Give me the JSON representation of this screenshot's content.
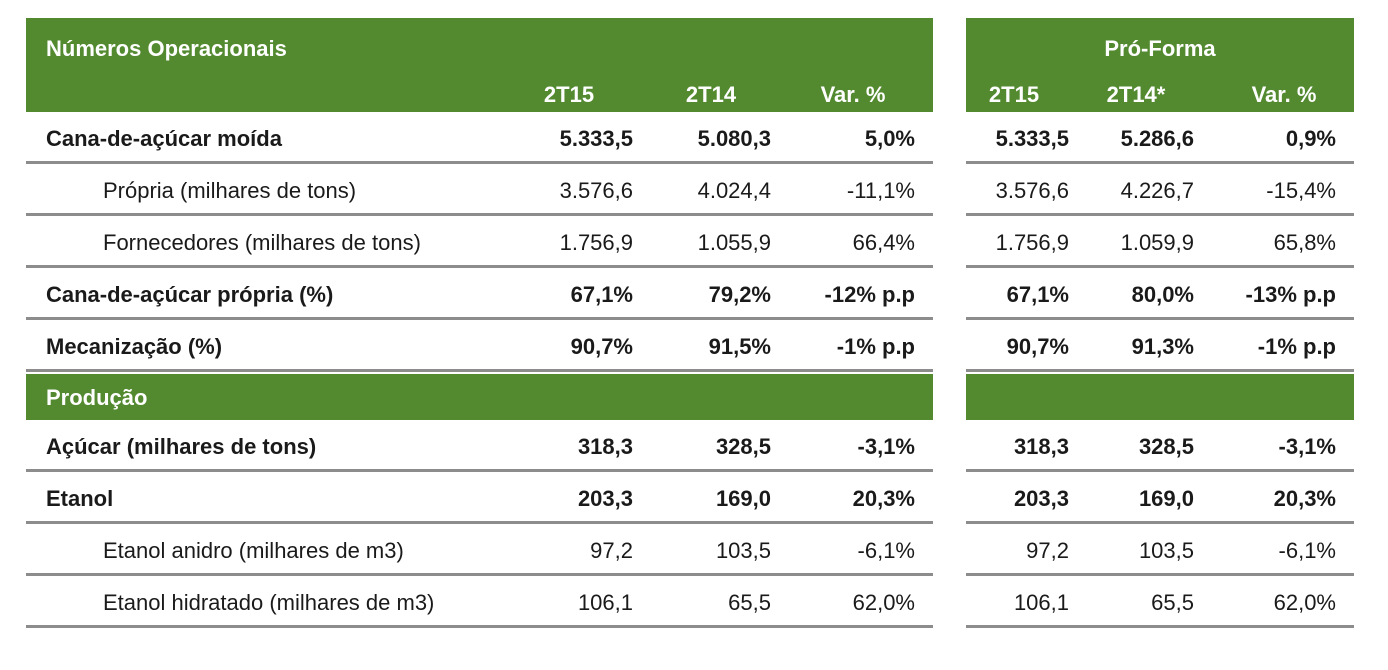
{
  "left": {
    "title": "Números Operacionais",
    "cols": [
      "2T15",
      "2T14",
      "Var. %"
    ],
    "section_label": "Produção"
  },
  "right": {
    "title": "Pró-Forma",
    "cols": [
      "2T15",
      "2T14*",
      "Var. %"
    ]
  },
  "rows_top": [
    {
      "label": "Cana-de-açúcar moída",
      "bold": true,
      "indent": false,
      "l": [
        "5.333,5",
        "5.080,3",
        "5,0%"
      ],
      "r": [
        "5.333,5",
        "5.286,6",
        "0,9%"
      ]
    },
    {
      "label": "Própria (milhares de tons)",
      "bold": false,
      "indent": true,
      "l": [
        "3.576,6",
        "4.024,4",
        "-11,1%"
      ],
      "r": [
        "3.576,6",
        "4.226,7",
        "-15,4%"
      ]
    },
    {
      "label": "Fornecedores (milhares de tons)",
      "bold": false,
      "indent": true,
      "l": [
        "1.756,9",
        "1.055,9",
        "66,4%"
      ],
      "r": [
        "1.756,9",
        "1.059,9",
        "65,8%"
      ]
    },
    {
      "label": "Cana-de-açúcar própria (%)",
      "bold": true,
      "indent": false,
      "l": [
        "67,1%",
        "79,2%",
        "-12% p.p"
      ],
      "r": [
        "67,1%",
        "80,0%",
        "-13% p.p"
      ]
    },
    {
      "label": "Mecanização (%)",
      "bold": true,
      "indent": false,
      "l": [
        "90,7%",
        "91,5%",
        "-1% p.p"
      ],
      "r": [
        "90,7%",
        "91,3%",
        "-1% p.p"
      ]
    }
  ],
  "rows_bottom": [
    {
      "label": "Açúcar (milhares de tons)",
      "bold": true,
      "indent": false,
      "l": [
        "318,3",
        "328,5",
        "-3,1%"
      ],
      "r": [
        "318,3",
        "328,5",
        "-3,1%"
      ]
    },
    {
      "label": "Etanol",
      "bold": true,
      "indent": false,
      "l": [
        "203,3",
        "169,0",
        "20,3%"
      ],
      "r": [
        "203,3",
        "169,0",
        "20,3%"
      ]
    },
    {
      "label": "Etanol anidro (milhares de m3)",
      "bold": false,
      "indent": true,
      "l": [
        "97,2",
        "103,5",
        "-6,1%"
      ],
      "r": [
        "97,2",
        "103,5",
        "-6,1%"
      ]
    },
    {
      "label": "Etanol hidratado (milhares de m3)",
      "bold": false,
      "indent": true,
      "l": [
        "106,1",
        "65,5",
        "62,0%"
      ],
      "r": [
        "106,1",
        "65,5",
        "62,0%"
      ]
    }
  ],
  "colors": {
    "header_green": "#538a30",
    "rule_gray": "#8c8c8c"
  }
}
